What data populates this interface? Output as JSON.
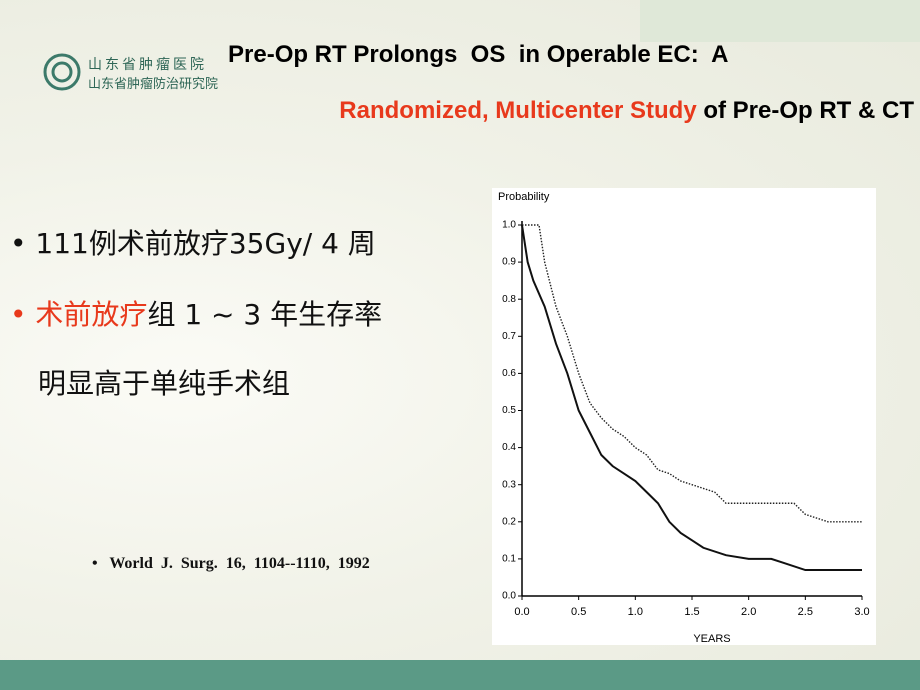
{
  "header": {
    "logo_line1": "山东省肿瘤医院",
    "logo_line2": "山东省肿瘤防治研究院",
    "title_line1": "Pre-Op RT Prolongs  OS  in Operable EC:  A",
    "title_line2_highlight": "Randomized, Multicenter Study",
    "title_line2_rest": " of Pre-Op RT & CT"
  },
  "bullets": [
    {
      "text": "111例术前放疗35Gy/ 4 周"
    },
    {
      "highlight": "术前放疗",
      "text": "组 1 ~ 3 年生存率",
      "continuation": "明显高于单纯手术组"
    }
  ],
  "citation": "World  J.  Surg.  16,  1104--1110,  1992",
  "chart_data": {
    "type": "line",
    "ylabel": "Probability",
    "xlabel": "YEARS",
    "xlim": [
      0,
      3
    ],
    "ylim": [
      0,
      1
    ],
    "xticks": [
      {
        "value": 0,
        "label": "0.0"
      },
      0.5,
      {
        "value": 1,
        "label": "1.0"
      },
      1.5,
      {
        "value": 2,
        "label": "2.0"
      },
      2.5,
      {
        "value": 3,
        "label": "3.0"
      }
    ],
    "yticks": [
      {
        "value": 0,
        "label": "0.0"
      },
      0.1,
      0.2,
      0.3,
      0.4,
      0.5,
      0.6,
      0.7,
      0.8,
      0.9,
      {
        "value": 1,
        "label": "1.0"
      }
    ],
    "series": [
      {
        "color": "#222222",
        "dashed": true,
        "x": [
          0,
          0.15,
          0.2,
          0.3,
          0.4,
          0.5,
          0.6,
          0.7,
          0.8,
          0.9,
          1.0,
          1.1,
          1.2,
          1.3,
          1.4,
          1.5,
          1.6,
          1.7,
          1.8,
          2.0,
          2.4,
          2.5,
          2.7,
          3.0
        ],
        "values": [
          1.0,
          1.0,
          0.9,
          0.78,
          0.7,
          0.6,
          0.52,
          0.48,
          0.45,
          0.43,
          0.4,
          0.38,
          0.34,
          0.33,
          0.31,
          0.3,
          0.29,
          0.28,
          0.25,
          0.25,
          0.25,
          0.22,
          0.2,
          0.2
        ]
      },
      {
        "color": "#111111",
        "dashed": false,
        "x": [
          0,
          0.05,
          0.1,
          0.2,
          0.3,
          0.4,
          0.5,
          0.6,
          0.7,
          0.8,
          0.9,
          1.0,
          1.1,
          1.2,
          1.3,
          1.4,
          1.5,
          1.6,
          1.8,
          2.0,
          2.2,
          2.3,
          2.5,
          3.0
        ],
        "values": [
          1.0,
          0.9,
          0.85,
          0.78,
          0.68,
          0.6,
          0.5,
          0.44,
          0.38,
          0.35,
          0.33,
          0.31,
          0.28,
          0.25,
          0.2,
          0.17,
          0.15,
          0.13,
          0.11,
          0.1,
          0.1,
          0.09,
          0.07,
          0.07
        ]
      }
    ]
  }
}
